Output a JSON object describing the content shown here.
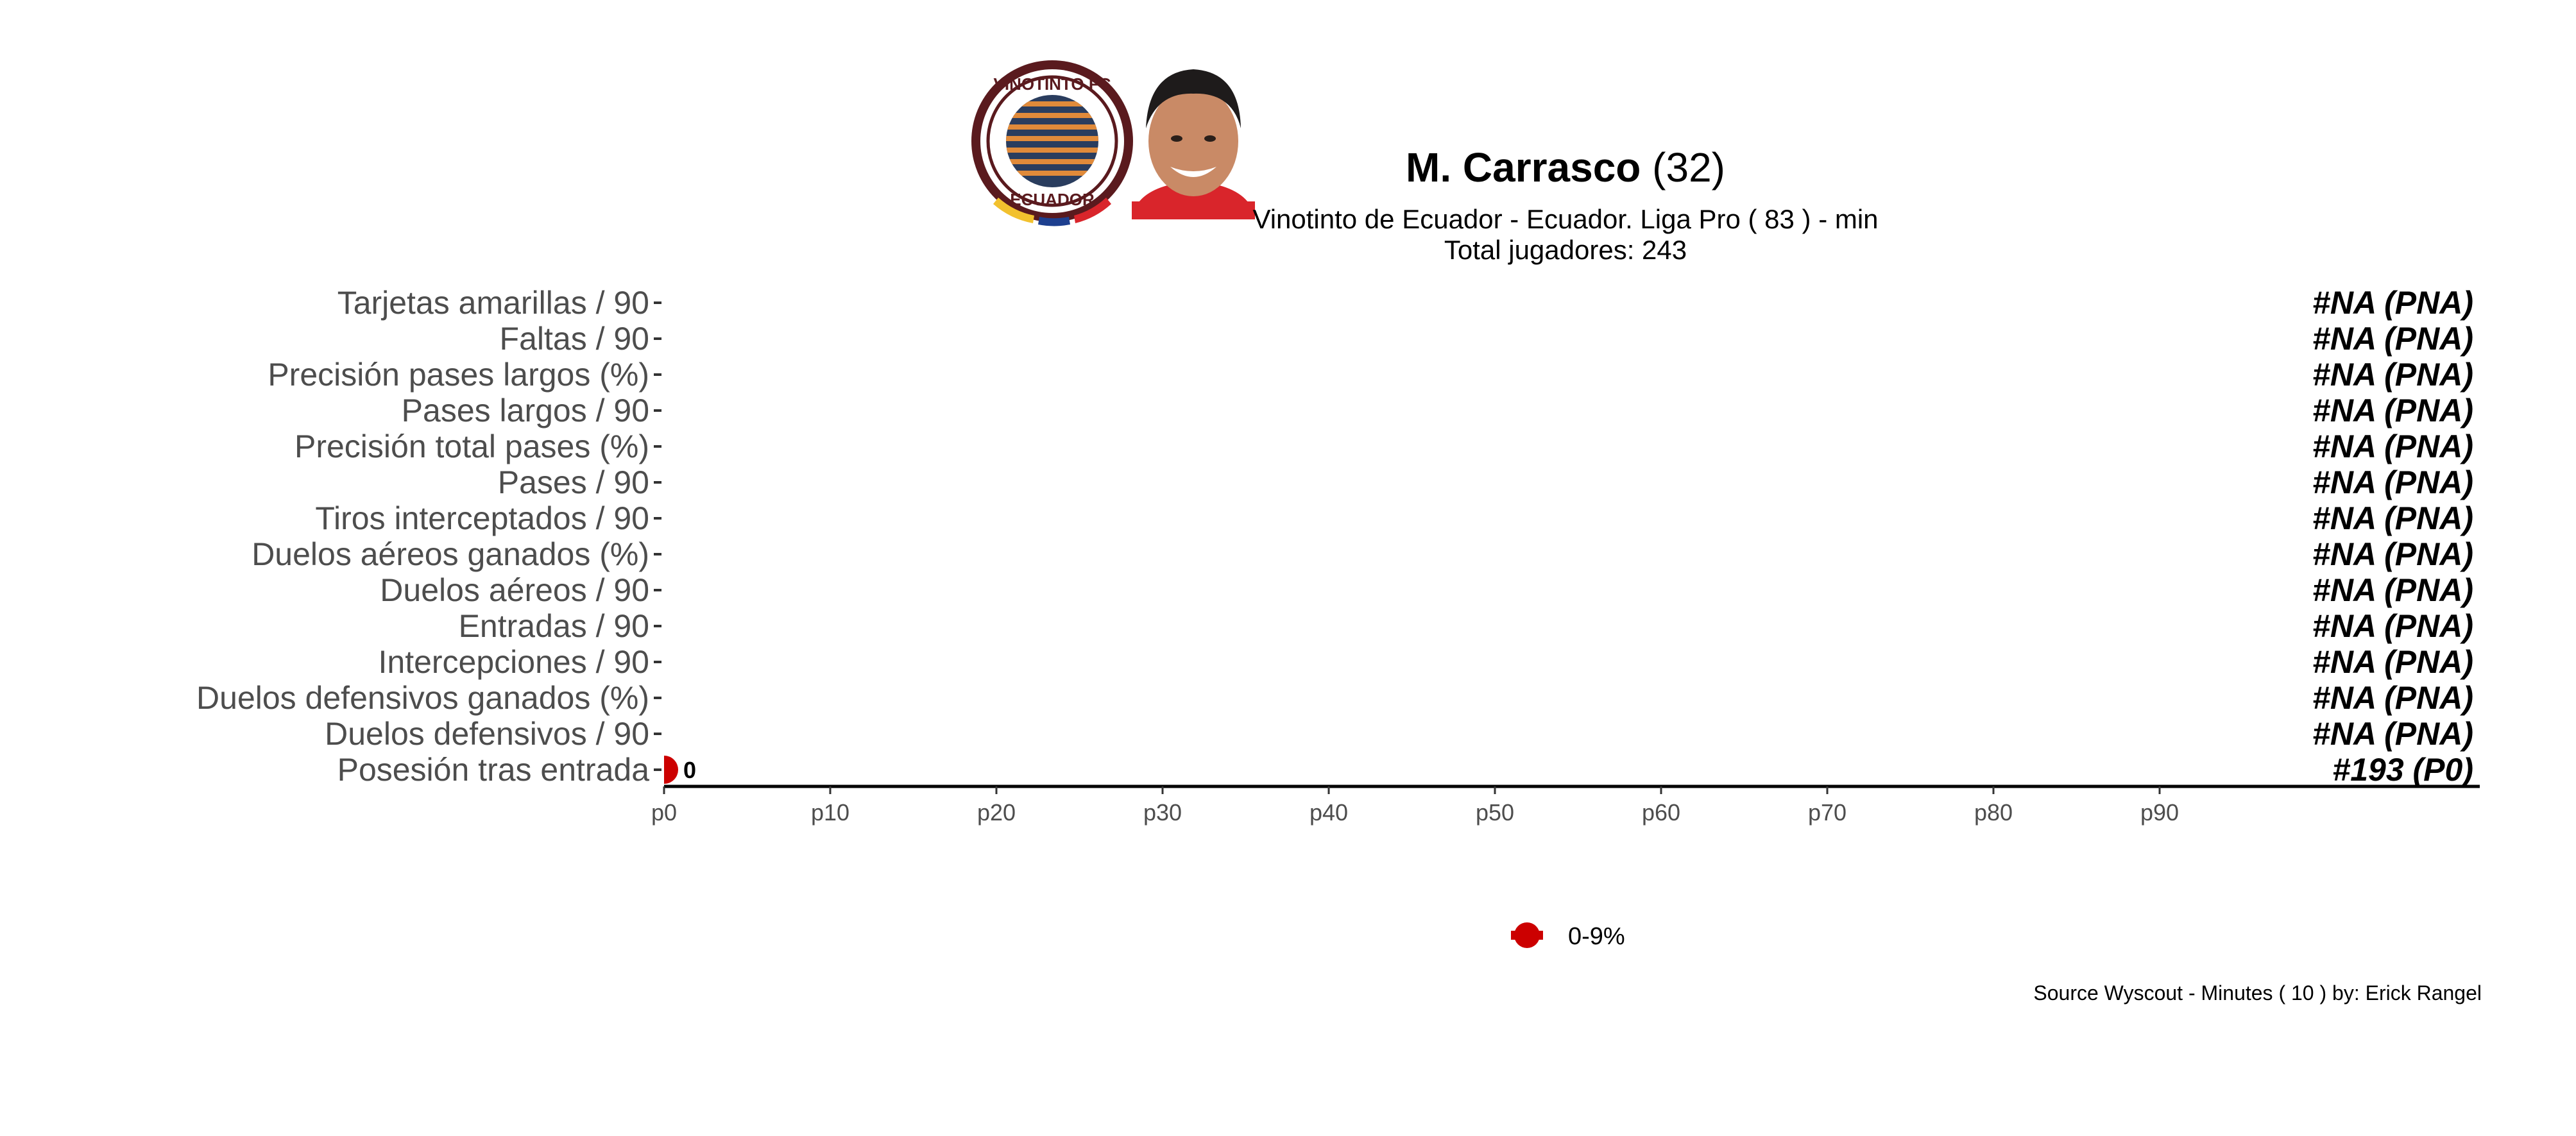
{
  "header": {
    "player_name": "M. Carrasco",
    "player_age": "(32)",
    "subtitle": "Vinotinto de Ecuador  -  Ecuador. Liga Pro  ( 83 ) - min",
    "total_label": "Total jugadores:  243",
    "club_badge": {
      "text_top": "VINOTINTO FC",
      "text_bottom": "ECUADOR",
      "colors": {
        "ring": "#5a1a1e",
        "stripes_dark": "#2a3d5e",
        "stripes_light": "#e08a3a",
        "yellow": "#f2c12e",
        "blue": "#1d3f8f",
        "red": "#d9252b"
      }
    },
    "player_photo": {
      "icon": "player-portrait-icon",
      "skin": "#c98a66",
      "hair": "#1e1b1b",
      "shirt": "#d9252b"
    }
  },
  "chart_data": {
    "type": "scatter",
    "orientation": "horizontal",
    "x_label_prefix": "p",
    "xlim": [
      0,
      100
    ],
    "xticks": [
      0,
      10,
      20,
      30,
      40,
      50,
      60,
      70,
      80,
      90
    ],
    "xtick_labels": [
      "p0",
      "p10",
      "p20",
      "p30",
      "p40",
      "p50",
      "p60",
      "p70",
      "p80",
      "p90"
    ],
    "categories": [
      "Tarjetas amarillas / 90",
      "Faltas / 90",
      "Precisión pases largos (%)",
      "Pases largos / 90",
      "Precisión total pases (%)",
      "Pases / 90",
      "Tiros interceptados / 90",
      "Duelos aéreos ganados (%)",
      "Duelos aéreos / 90",
      "Entradas / 90",
      "Intercepciones / 90",
      "Duelos defensivos ganados (%)",
      "Duelos defensivos / 90",
      "Posesión tras entrada"
    ],
    "percentiles": [
      null,
      null,
      null,
      null,
      null,
      null,
      null,
      null,
      null,
      null,
      null,
      null,
      null,
      0
    ],
    "point_labels": [
      "",
      "",
      "",
      "",
      "",
      "",
      "",
      "",
      "",
      "",
      "",
      "",
      "",
      "0"
    ],
    "rank_labels": [
      "#NA (PNA)",
      "#NA (PNA)",
      "#NA (PNA)",
      "#NA (PNA)",
      "#NA (PNA)",
      "#NA (PNA)",
      "#NA (PNA)",
      "#NA (PNA)",
      "#NA (PNA)",
      "#NA (PNA)",
      "#NA (PNA)",
      "#NA (PNA)",
      "#NA (PNA)",
      "#193 (P0)"
    ],
    "legend": {
      "label": "0-9%",
      "color": "#cc0000",
      "position": "bottom-center"
    },
    "colors": {
      "point": "#cc0000",
      "axis": "#000000",
      "category_text": "#4d4d4d",
      "tick_text": "#4d4d4d"
    },
    "grid": false
  },
  "footer": {
    "source": "Source Wyscout - Minutes ( 10 ) by: Erick Rangel"
  }
}
